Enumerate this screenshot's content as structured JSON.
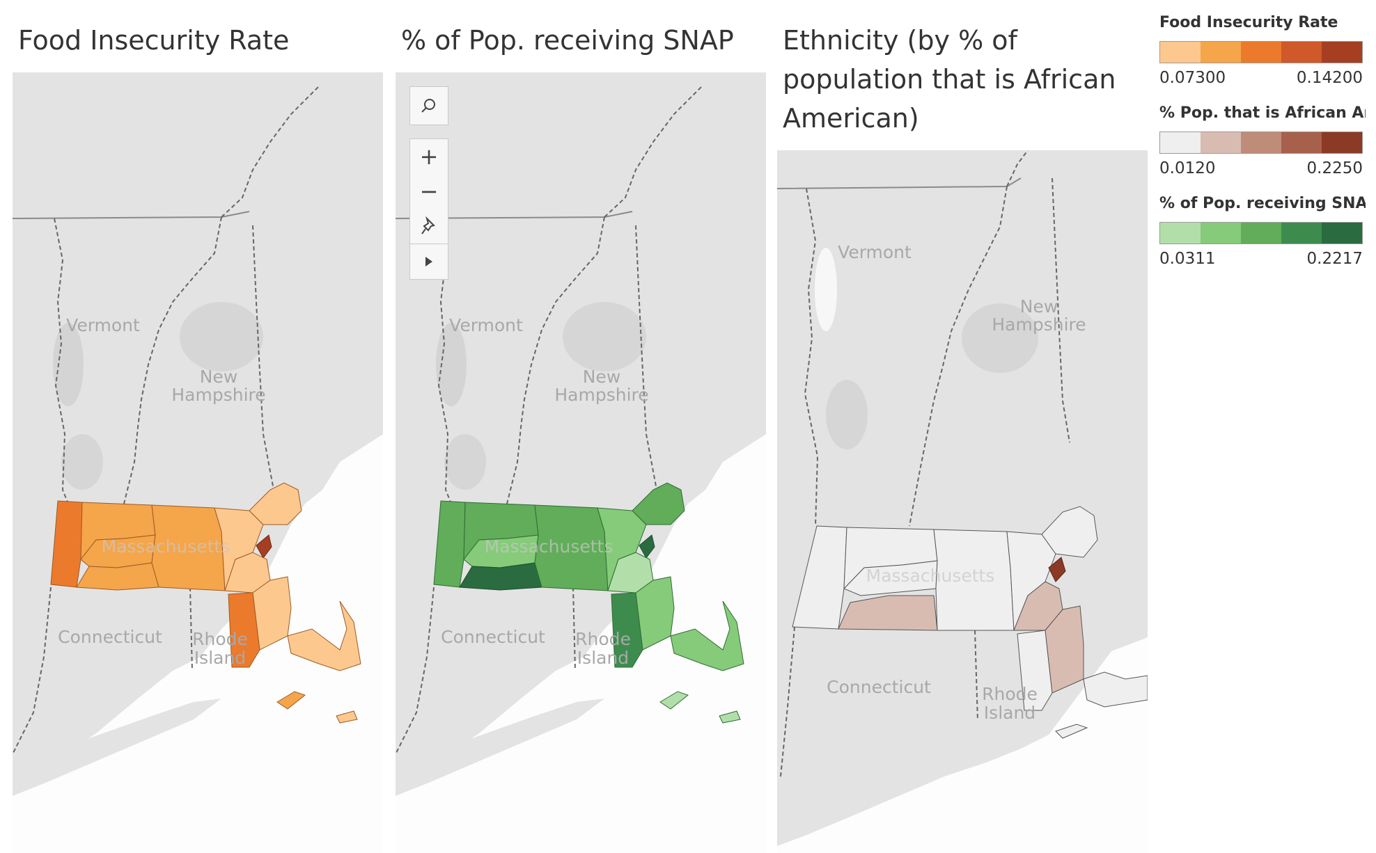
{
  "panels": [
    {
      "title": "Food Insecurity Rate"
    },
    {
      "title": "% of Pop. receiving SNAP"
    },
    {
      "title": "Ethnicity (by % of population that is African American)"
    }
  ],
  "map_labels": {
    "vermont": "Vermont",
    "nh_line1": "New",
    "nh_line2": "Hampshire",
    "massachusetts": "Massachusetts",
    "connecticut": "Connecticut",
    "ri_line1": "Rhode",
    "ri_line2": "Island"
  },
  "toolbar": {
    "search_icon": "search-icon",
    "zoom_in": "+",
    "zoom_out": "−",
    "pin_icon": "pin-icon",
    "expand_icon": "play-icon"
  },
  "legends": [
    {
      "title": "Food Insecurity Rate",
      "min": "0.07300",
      "max": "0.14200",
      "colors": [
        "#fdc88e",
        "#f5a54a",
        "#ec7a2c",
        "#cf5928",
        "#a63e22"
      ]
    },
    {
      "title": "% Pop. that is African Am..",
      "min": "0.0120",
      "max": "0.2250",
      "colors": [
        "#efefef",
        "#d9bcb1",
        "#bf8c79",
        "#a7604c",
        "#8a3a25"
      ]
    },
    {
      "title": "% of Pop. receiving SNAP",
      "min": "0.0311",
      "max": "0.2217",
      "colors": [
        "#b2dfa9",
        "#85cb79",
        "#61ad59",
        "#3d8c4e",
        "#2a6b40"
      ]
    }
  ],
  "colors": {
    "land": "#e3e3e3",
    "water": "#f7f7f7",
    "border": "#7d7d7d"
  }
}
